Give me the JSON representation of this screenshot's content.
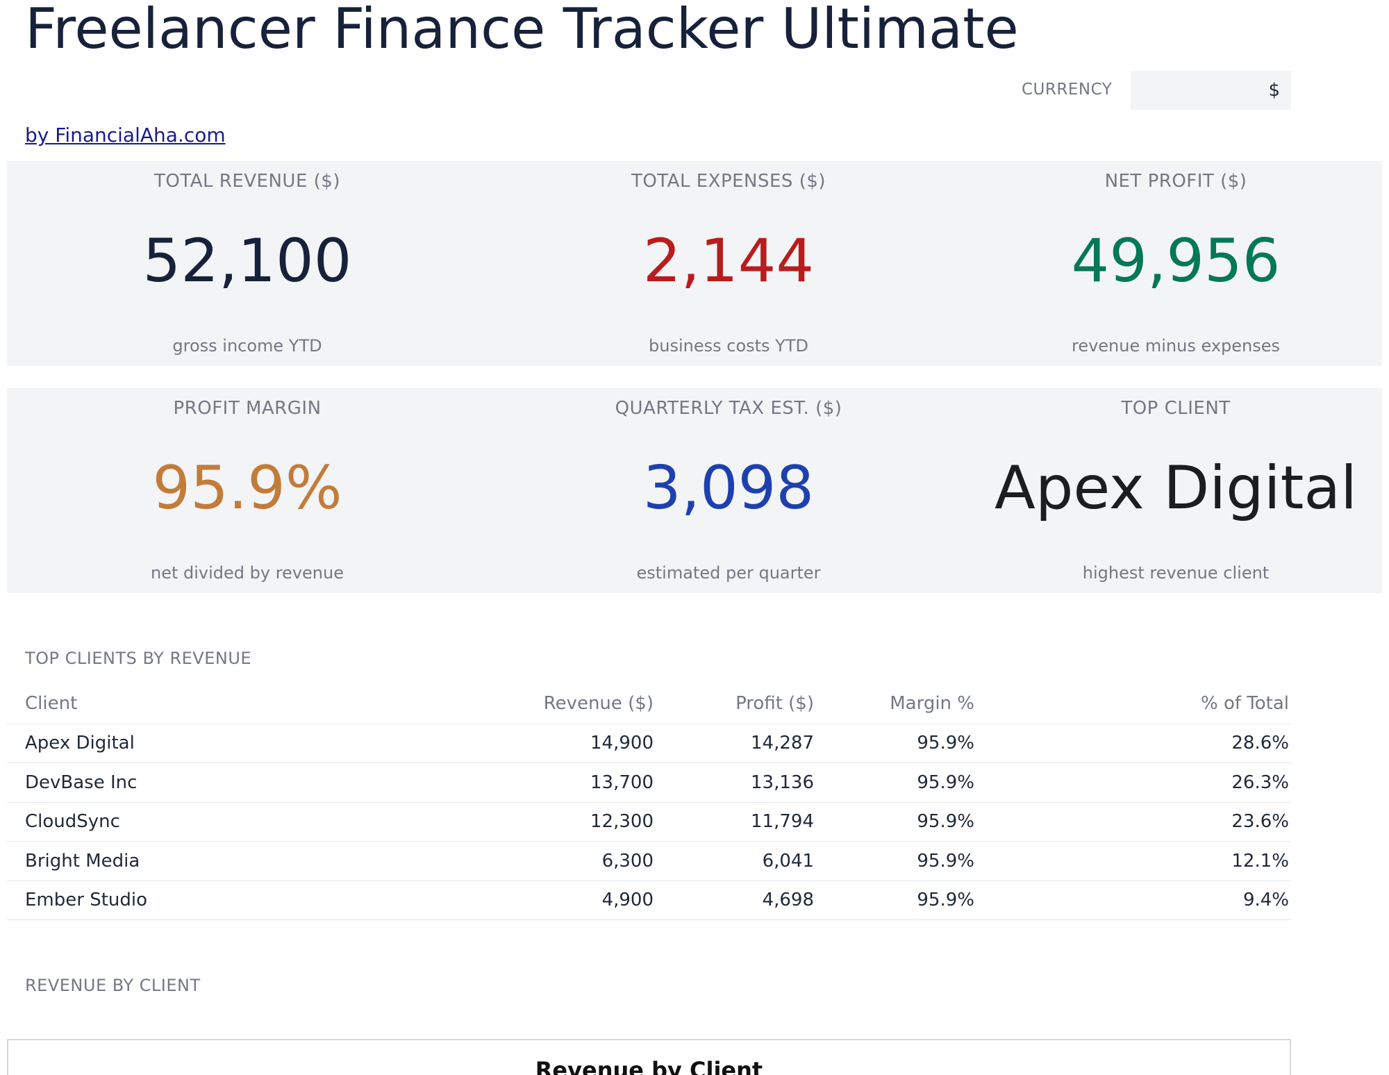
{
  "header": {
    "title": "Freelancer Finance Tracker Ultimate",
    "byline": "by FinancialAha.com",
    "currency_label": "CURRENCY",
    "currency_value": "$"
  },
  "kpis": [
    {
      "label": "TOTAL REVENUE ($)",
      "value": "52,100",
      "sub": "gross income YTD",
      "color": "#17213a"
    },
    {
      "label": "TOTAL EXPENSES ($)",
      "value": "2,144",
      "sub": "business costs YTD",
      "color": "#b91c1c"
    },
    {
      "label": "NET PROFIT ($)",
      "value": "49,956",
      "sub": "revenue minus expenses",
      "color": "#047857"
    },
    {
      "label": "PROFIT MARGIN",
      "value": "95.9%",
      "sub": "net divided by revenue",
      "color": "#c27c3a"
    },
    {
      "label": "QUARTERLY TAX EST. ($)",
      "value": "3,098",
      "sub": "estimated per quarter",
      "color": "#1e40af"
    },
    {
      "label": "TOP CLIENT",
      "value": "Apex Digital",
      "sub": "highest revenue client",
      "color": "#1c1d21"
    }
  ],
  "top_clients": {
    "section_title": "TOP CLIENTS BY REVENUE",
    "columns": [
      "Client",
      "Revenue ($)",
      "Profit ($)",
      "Margin %",
      "% of Total"
    ],
    "rows": [
      [
        "Apex Digital",
        "14,900",
        "14,287",
        "95.9%",
        "28.6%"
      ],
      [
        "DevBase Inc",
        "13,700",
        "13,136",
        "95.9%",
        "26.3%"
      ],
      [
        "CloudSync",
        "12,300",
        "11,794",
        "95.9%",
        "23.6%"
      ],
      [
        "Bright Media",
        "6,300",
        "6,041",
        "95.9%",
        "12.1%"
      ],
      [
        "Ember Studio",
        "4,900",
        "4,698",
        "95.9%",
        "9.4%"
      ]
    ]
  },
  "revenue_by_client": {
    "section_title": "REVENUE BY CLIENT",
    "chart_title": "Revenue by Client"
  }
}
